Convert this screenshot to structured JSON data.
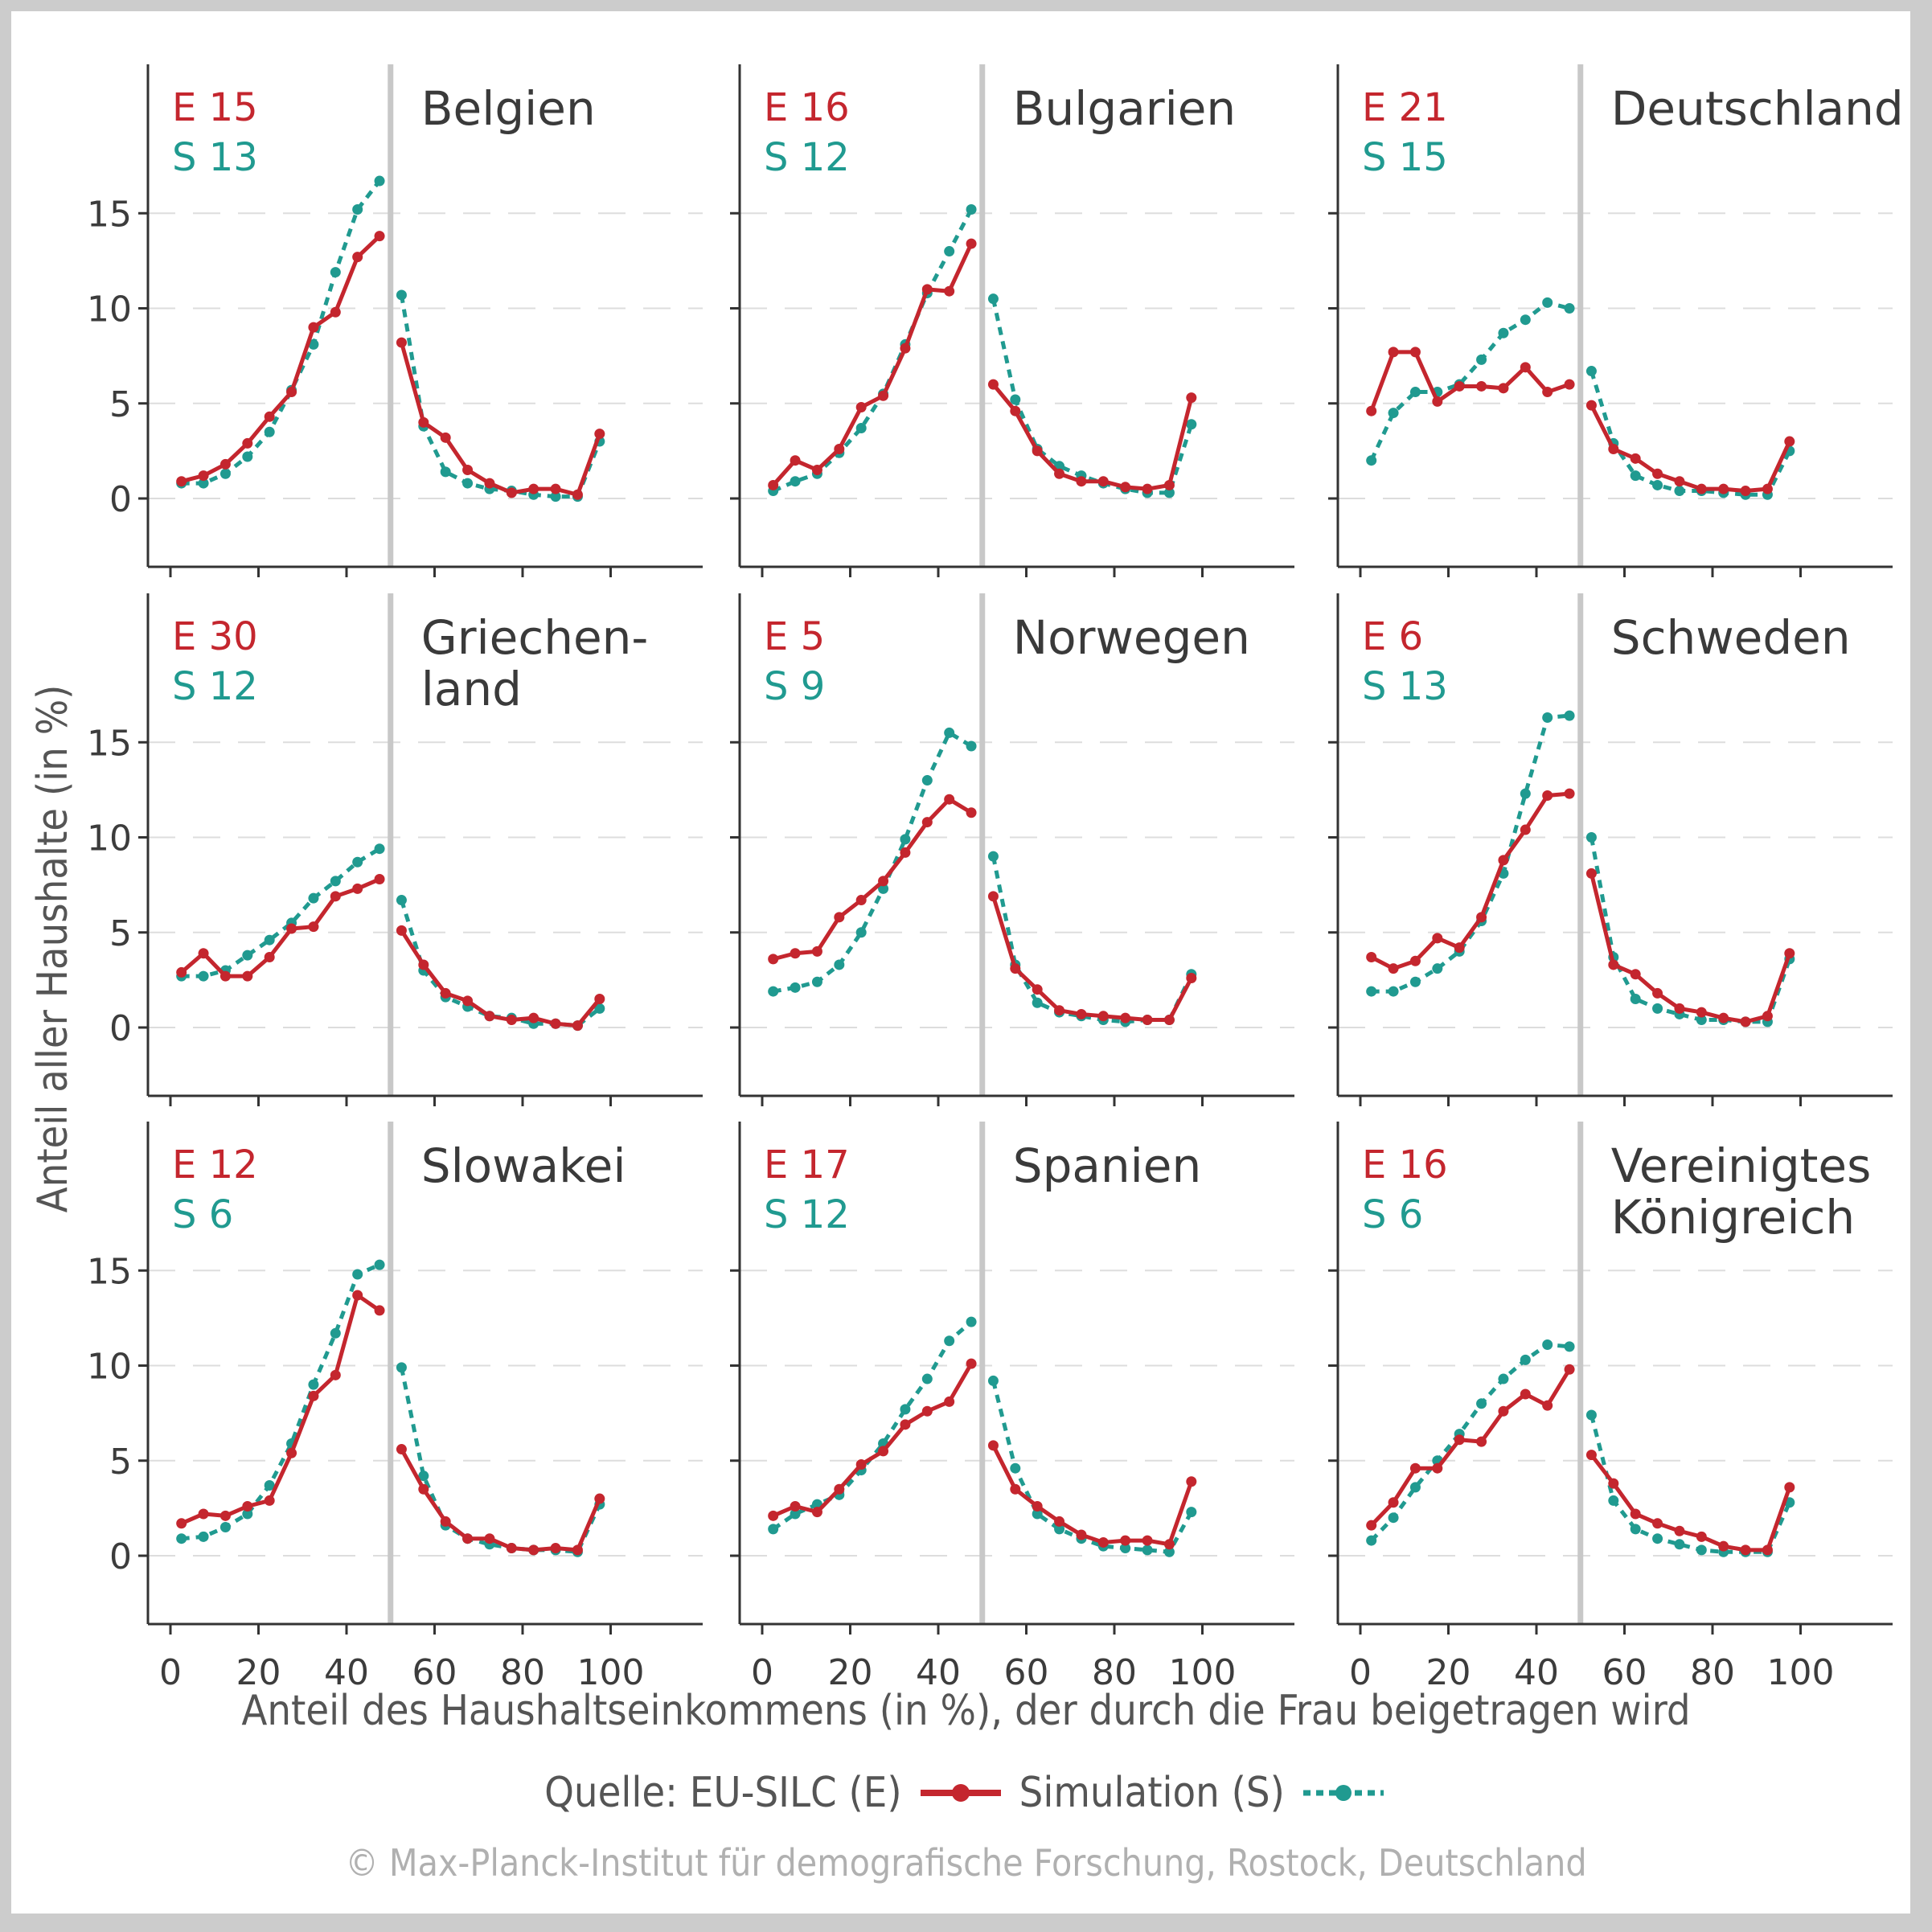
{
  "colors": {
    "eusilc": "#c4262e",
    "simulation": "#209a90",
    "divider": "#c8c8c8",
    "grid": "#dddddd"
  },
  "y_axis_label": "Anteil aller Haushalte (in %)",
  "x_axis_label": "Anteil des Haushaltseinkommens (in %), der durch die Frau beigetragen wird",
  "legend": {
    "source_label": "Quelle: EU-SILC (E)",
    "simulation_label": "Simulation (S)"
  },
  "copyright": "© Max-Planck-Institut für demografische Forschung, Rostock, Deutschland",
  "chart_data": {
    "type": "line",
    "layout": "3x3 small multiples",
    "xlabel": "Anteil des Haushaltseinkommens (in %), der durch die Frau beigetragen wird",
    "ylabel": "Anteil aller Haushalte (in %)",
    "xlim": [
      0,
      100
    ],
    "ylim": [
      0,
      17.5
    ],
    "x_ticks": [
      "0",
      "20",
      "40",
      "60",
      "80",
      "100"
    ],
    "y_ticks": [
      "0",
      "5",
      "10",
      "15"
    ],
    "grid": "horizontal dashed",
    "legend_placement": "bottom",
    "divider_at": 50,
    "x": [
      2.5,
      7.5,
      12.5,
      17.5,
      22.5,
      27.5,
      32.5,
      37.5,
      42.5,
      47.5,
      52.5,
      57.5,
      62.5,
      67.5,
      72.5,
      77.5,
      82.5,
      87.5,
      92.5,
      97.5
    ],
    "panels": [
      {
        "title": "Belgien",
        "E_value": "15",
        "S_value": "13",
        "series": [
          {
            "name": "EU-SILC (E)",
            "values": [
              0.9,
              1.2,
              1.8,
              2.9,
              4.3,
              5.6,
              9.0,
              9.8,
              12.7,
              13.8,
              8.2,
              4.0,
              3.2,
              1.5,
              0.8,
              0.3,
              0.5,
              0.5,
              0.2,
              3.4
            ]
          },
          {
            "name": "Simulation (S)",
            "values": [
              0.8,
              0.8,
              1.3,
              2.2,
              3.5,
              5.7,
              8.1,
              11.9,
              15.2,
              16.7,
              10.7,
              3.8,
              1.4,
              0.8,
              0.5,
              0.4,
              0.2,
              0.1,
              0.1,
              3.0
            ]
          }
        ]
      },
      {
        "title": "Bulgarien",
        "E_value": "16",
        "S_value": "12",
        "series": [
          {
            "name": "EU-SILC (E)",
            "values": [
              0.7,
              2.0,
              1.5,
              2.6,
              4.8,
              5.4,
              7.9,
              11.0,
              10.9,
              13.4,
              6.0,
              4.6,
              2.5,
              1.3,
              0.9,
              0.9,
              0.6,
              0.5,
              0.7,
              5.3
            ]
          },
          {
            "name": "Simulation (S)",
            "values": [
              0.4,
              0.9,
              1.3,
              2.4,
              3.7,
              5.5,
              8.1,
              10.8,
              13.0,
              15.2,
              10.5,
              5.2,
              2.6,
              1.7,
              1.2,
              0.8,
              0.5,
              0.3,
              0.3,
              3.9
            ]
          }
        ]
      },
      {
        "title": "Deutschland",
        "E_value": "21",
        "S_value": "15",
        "series": [
          {
            "name": "EU-SILC (E)",
            "values": [
              4.6,
              7.7,
              7.7,
              5.1,
              5.9,
              5.9,
              5.8,
              6.9,
              5.6,
              6.0,
              4.9,
              2.6,
              2.1,
              1.3,
              0.9,
              0.5,
              0.5,
              0.4,
              0.5,
              3.0
            ]
          },
          {
            "name": "Simulation (S)",
            "values": [
              2.0,
              4.5,
              5.6,
              5.6,
              6.0,
              7.3,
              8.7,
              9.4,
              10.3,
              10.0,
              6.7,
              2.9,
              1.2,
              0.7,
              0.4,
              0.4,
              0.3,
              0.2,
              0.2,
              2.5
            ]
          }
        ]
      },
      {
        "title": "Griechen-\nland",
        "E_value": "30",
        "S_value": "12",
        "series": [
          {
            "name": "EU-SILC (E)",
            "values": [
              2.9,
              3.9,
              2.7,
              2.7,
              3.7,
              5.2,
              5.3,
              6.9,
              7.3,
              7.8,
              5.1,
              3.3,
              1.8,
              1.4,
              0.6,
              0.4,
              0.5,
              0.2,
              0.1,
              1.5
            ]
          },
          {
            "name": "Simulation (S)",
            "values": [
              2.7,
              2.7,
              3.0,
              3.8,
              4.6,
              5.5,
              6.8,
              7.7,
              8.7,
              9.4,
              6.7,
              3.0,
              1.6,
              1.1,
              0.6,
              0.5,
              0.2,
              0.2,
              0.1,
              1.0
            ]
          }
        ]
      },
      {
        "title": "Norwegen",
        "E_value": "5",
        "S_value": "9",
        "series": [
          {
            "name": "EU-SILC (E)",
            "values": [
              3.6,
              3.9,
              4.0,
              5.8,
              6.7,
              7.7,
              9.2,
              10.8,
              12.0,
              11.3,
              6.9,
              3.1,
              2.0,
              0.9,
              0.7,
              0.6,
              0.5,
              0.4,
              0.4,
              2.6
            ]
          },
          {
            "name": "Simulation (S)",
            "values": [
              1.9,
              2.1,
              2.4,
              3.3,
              5.0,
              7.3,
              9.9,
              13.0,
              15.5,
              14.8,
              9.0,
              3.3,
              1.3,
              0.8,
              0.6,
              0.4,
              0.3,
              0.4,
              0.4,
              2.8
            ]
          }
        ]
      },
      {
        "title": "Schweden",
        "E_value": "6",
        "S_value": "13",
        "series": [
          {
            "name": "EU-SILC (E)",
            "values": [
              3.7,
              3.1,
              3.5,
              4.7,
              4.2,
              5.8,
              8.8,
              10.4,
              12.2,
              12.3,
              8.1,
              3.3,
              2.8,
              1.8,
              1.0,
              0.8,
              0.5,
              0.3,
              0.6,
              3.9
            ]
          },
          {
            "name": "Simulation (S)",
            "values": [
              1.9,
              1.9,
              2.4,
              3.1,
              4.0,
              5.6,
              8.1,
              12.3,
              16.3,
              16.4,
              10.0,
              3.7,
              1.5,
              1.0,
              0.7,
              0.4,
              0.4,
              0.3,
              0.3,
              3.6
            ]
          }
        ]
      },
      {
        "title": "Slowakei",
        "E_value": "12",
        "S_value": "6",
        "series": [
          {
            "name": "EU-SILC (E)",
            "values": [
              1.7,
              2.2,
              2.1,
              2.6,
              2.9,
              5.4,
              8.4,
              9.5,
              13.7,
              12.9,
              5.6,
              3.5,
              1.8,
              0.9,
              0.9,
              0.4,
              0.3,
              0.4,
              0.3,
              3.0
            ]
          },
          {
            "name": "Simulation (S)",
            "values": [
              0.9,
              1.0,
              1.5,
              2.2,
              3.7,
              5.9,
              9.0,
              11.7,
              14.8,
              15.3,
              9.9,
              4.2,
              1.6,
              0.9,
              0.6,
              0.4,
              0.3,
              0.3,
              0.2,
              2.7
            ]
          }
        ]
      },
      {
        "title": "Spanien",
        "E_value": "17",
        "S_value": "12",
        "series": [
          {
            "name": "EU-SILC (E)",
            "values": [
              2.1,
              2.6,
              2.3,
              3.5,
              4.8,
              5.5,
              6.9,
              7.6,
              8.1,
              10.1,
              5.8,
              3.5,
              2.6,
              1.8,
              1.1,
              0.7,
              0.8,
              0.8,
              0.6,
              3.9
            ]
          },
          {
            "name": "Simulation (S)",
            "values": [
              1.4,
              2.2,
              2.7,
              3.2,
              4.5,
              5.9,
              7.7,
              9.3,
              11.3,
              12.3,
              9.2,
              4.6,
              2.2,
              1.4,
              0.9,
              0.5,
              0.4,
              0.3,
              0.2,
              2.3
            ]
          }
        ]
      },
      {
        "title": "Vereinigtes\nKönigreich",
        "E_value": "16",
        "S_value": "6",
        "series": [
          {
            "name": "EU-SILC (E)",
            "values": [
              1.6,
              2.8,
              4.6,
              4.6,
              6.1,
              6.0,
              7.6,
              8.5,
              7.9,
              9.8,
              5.3,
              3.8,
              2.2,
              1.7,
              1.3,
              1.0,
              0.5,
              0.3,
              0.3,
              3.6
            ]
          },
          {
            "name": "Simulation (S)",
            "values": [
              0.8,
              2.0,
              3.6,
              5.0,
              6.4,
              8.0,
              9.3,
              10.3,
              11.1,
              11.0,
              7.4,
              2.9,
              1.4,
              0.9,
              0.6,
              0.3,
              0.2,
              0.2,
              0.2,
              2.8
            ]
          }
        ]
      }
    ]
  }
}
